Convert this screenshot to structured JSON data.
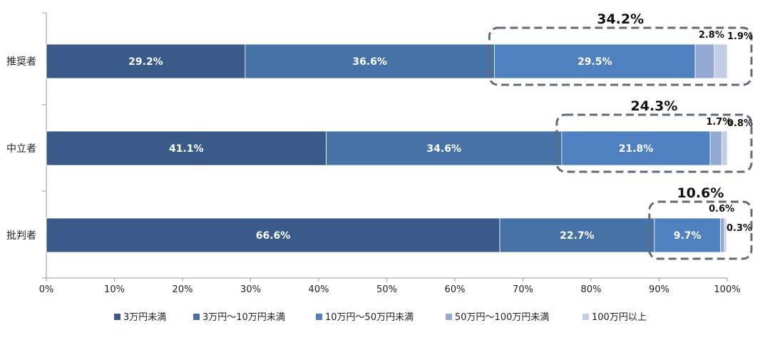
{
  "chart_data": {
    "type": "bar",
    "orientation": "horizontal",
    "stacked": true,
    "categories": [
      "推奨者",
      "中立者",
      "批判者"
    ],
    "series": [
      {
        "name": "3万円未満",
        "color": "#3a5a8a",
        "values": [
          29.2,
          41.1,
          66.6
        ],
        "labels": [
          "29.2%",
          "41.1%",
          "66.6%"
        ]
      },
      {
        "name": "3万円～10万円未満",
        "color": "#4672a8",
        "values": [
          36.6,
          34.6,
          22.7
        ],
        "labels": [
          "36.6%",
          "34.6%",
          "22.7%"
        ]
      },
      {
        "name": "10万円～50万円未満",
        "color": "#4f80c0",
        "values": [
          29.5,
          21.8,
          9.7
        ],
        "labels": [
          "29.5%",
          "21.8%",
          "9.7%"
        ]
      },
      {
        "name": "50万円～100万円未満",
        "color": "#94a9d2",
        "values": [
          2.8,
          1.7,
          0.6
        ],
        "labels": [
          "2.8%",
          "1.7%",
          "0.6%"
        ]
      },
      {
        "name": "100万円以上",
        "color": "#c1cce6",
        "values": [
          1.9,
          0.8,
          0.3
        ],
        "labels": [
          "1.9%",
          "0.8%",
          "0.3%"
        ]
      }
    ],
    "group_totals": [
      "34.2%",
      "24.3%",
      "10.6%"
    ],
    "xlim": [
      0,
      100
    ],
    "x_ticks": [
      "0%",
      "10%",
      "20%",
      "30%",
      "40%",
      "50%",
      "60%",
      "70%",
      "80%",
      "90%",
      "100%"
    ],
    "legend_position": "bottom",
    "grid": false
  }
}
